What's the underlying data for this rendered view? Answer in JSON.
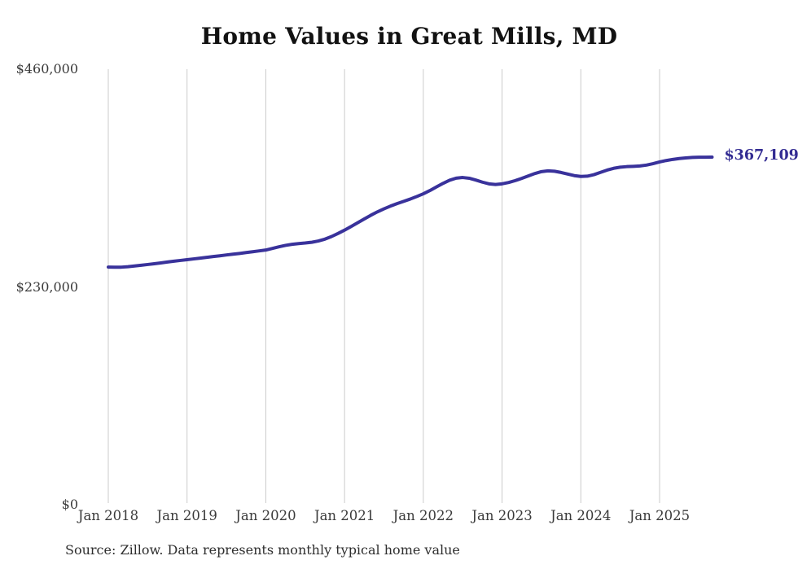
{
  "title": "Home Values in Great Mills, MD",
  "end_label": "$367,109",
  "source_note": "Source: Zillow. Data represents monthly typical home value",
  "colors": {
    "background": "#ffffff",
    "line": "#39329b",
    "end_label": "#322b92",
    "gridline": "#cbcbcb",
    "axis_text": "#3a3a3a",
    "title_text": "#121212"
  },
  "y_axis": {
    "tick_labels": [
      "$460,000",
      "$230,000",
      "$0"
    ],
    "tick_values": [
      460000,
      230000,
      0
    ]
  },
  "x_axis": {
    "tick_labels": [
      "Jan 2018",
      "Jan 2019",
      "Jan 2020",
      "Jan 2021",
      "Jan 2022",
      "Jan 2023",
      "Jan 2024",
      "Jan 2025"
    ]
  },
  "chart_data": {
    "type": "line",
    "title": "Home Values in Great Mills, MD",
    "xlabel": "",
    "ylabel": "",
    "ylim": [
      0,
      460000
    ],
    "grid": "vertical-only",
    "legend": "none",
    "x_interval": "monthly",
    "x_start": "Jan 2018",
    "x_end": "Sep 2025",
    "x_tick_labels": [
      "Jan 2018",
      "Jan 2019",
      "Jan 2020",
      "Jan 2021",
      "Jan 2022",
      "Jan 2023",
      "Jan 2024",
      "Jan 2025"
    ],
    "y_tick_labels": [
      "$0",
      "$230,000",
      "$460,000"
    ],
    "last_value": 367109,
    "last_value_label": "$367,109",
    "series": [
      {
        "name": "Typical home value",
        "values": [
          251000,
          250800,
          250900,
          251400,
          252100,
          252900,
          253700,
          254500,
          255400,
          256300,
          257200,
          258000,
          258800,
          259600,
          260400,
          261300,
          262100,
          262900,
          263800,
          264600,
          265400,
          266300,
          267200,
          268100,
          269000,
          270700,
          272400,
          273900,
          275000,
          275800,
          276400,
          277200,
          278500,
          280500,
          283200,
          286500,
          290000,
          293800,
          297800,
          301800,
          305700,
          309300,
          312500,
          315400,
          318000,
          320400,
          322800,
          325500,
          328400,
          331800,
          335600,
          339400,
          342700,
          344900,
          345600,
          344800,
          342900,
          340700,
          338900,
          338200,
          338900,
          340300,
          342300,
          344700,
          347300,
          349800,
          351800,
          352600,
          352200,
          350900,
          349200,
          347600,
          346700,
          347000,
          348600,
          351000,
          353400,
          355300,
          356500,
          357100,
          357400,
          357800,
          358700,
          360200,
          362000,
          363500,
          364700,
          365600,
          366300,
          366800,
          367000,
          367050,
          367109
        ]
      }
    ],
    "source": "Source: Zillow. Data represents monthly typical home value"
  }
}
